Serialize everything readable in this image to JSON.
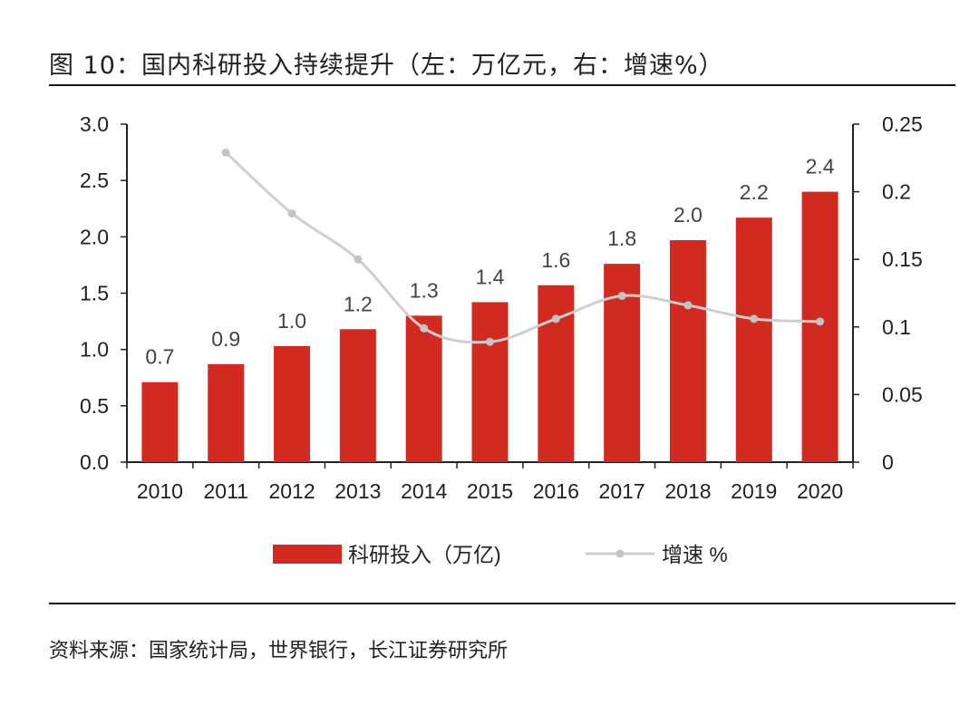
{
  "figure": {
    "title": "图 10：国内科研投入持续提升（左：万亿元，右：增速%）",
    "source": "资料来源：国家统计局，世界银行，长江证券研究所"
  },
  "chart_data": {
    "type": "bar+line",
    "categories": [
      "2010",
      "2011",
      "2012",
      "2013",
      "2014",
      "2015",
      "2016",
      "2017",
      "2018",
      "2019",
      "2020"
    ],
    "series": [
      {
        "name": "科研投入（万亿)",
        "kind": "bar",
        "axis": "left",
        "color": "#d12a20",
        "values": [
          0.71,
          0.87,
          1.03,
          1.18,
          1.3,
          1.42,
          1.57,
          1.76,
          1.97,
          2.17,
          2.4
        ],
        "labels": [
          "0.7",
          "0.9",
          "1.0",
          "1.2",
          "1.3",
          "1.4",
          "1.6",
          "1.8",
          "2.0",
          "2.2",
          "2.4"
        ]
      },
      {
        "name": "增速 %",
        "kind": "line",
        "axis": "right",
        "color": "#cfcfcf",
        "values": [
          null,
          0.229,
          0.184,
          0.15,
          0.099,
          0.089,
          0.106,
          0.123,
          0.116,
          0.106,
          0.104
        ]
      }
    ],
    "y_left": {
      "ylim": [
        0,
        3.0
      ],
      "ticks": [
        "0.0",
        "0.5",
        "1.0",
        "1.5",
        "2.0",
        "2.5",
        "3.0"
      ]
    },
    "y_right": {
      "ylim": [
        0,
        0.25
      ],
      "ticks": [
        "0",
        "0.05",
        "0.1",
        "0.15",
        "0.2",
        "0.25"
      ]
    },
    "grid": false,
    "legend_position": "bottom-center"
  }
}
